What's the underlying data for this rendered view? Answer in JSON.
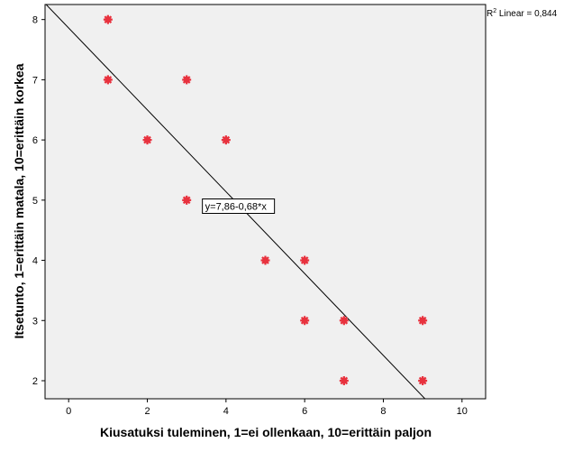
{
  "chart_data": {
    "type": "scatter",
    "xlabel": "Kiusatuksi tuleminen, 1=ei ollenkaan, 10=erittäin paljon",
    "ylabel": "Itsetunto, 1=erittäin matala, 10=erittäin korkea",
    "xlim": [
      -0.6,
      10.6
    ],
    "ylim": [
      1.7,
      8.25
    ],
    "x_ticks": [
      0,
      2,
      4,
      6,
      8,
      10
    ],
    "y_ticks": [
      2,
      3,
      4,
      5,
      6,
      7,
      8
    ],
    "points": [
      {
        "x": 1,
        "y": 8
      },
      {
        "x": 1,
        "y": 7
      },
      {
        "x": 2,
        "y": 6
      },
      {
        "x": 3,
        "y": 7
      },
      {
        "x": 3,
        "y": 5
      },
      {
        "x": 4,
        "y": 6
      },
      {
        "x": 5,
        "y": 4
      },
      {
        "x": 6,
        "y": 4
      },
      {
        "x": 6,
        "y": 3
      },
      {
        "x": 7,
        "y": 3
      },
      {
        "x": 7,
        "y": 2
      },
      {
        "x": 9,
        "y": 3
      },
      {
        "x": 9,
        "y": 2
      }
    ],
    "fit_line": {
      "intercept": 7.86,
      "slope": -0.68
    },
    "equation_label": "y=7,86-0,68*x",
    "equation_at": {
      "x": 3.4,
      "y": 4.9
    },
    "r2_prefix": "R",
    "r2_sup": "2",
    "r2_text": " Linear = 0,844",
    "grid": false,
    "colors": {
      "point": "#e8323e",
      "plot_bg": "#f0f0f0",
      "line": "#000000"
    }
  }
}
